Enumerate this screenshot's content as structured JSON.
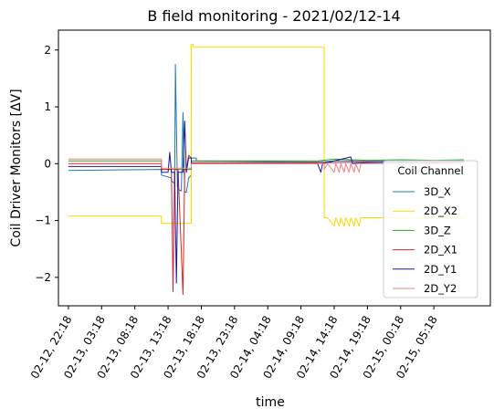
{
  "chart_data": {
    "type": "line",
    "title": "B field monitoring - 2021/02/12-14",
    "xlabel": "time",
    "ylabel": "Coil Driver Monitors [ΔV]",
    "ylim": [
      -2.5,
      2.35
    ],
    "xlim": [
      -0.3,
      12.7
    ],
    "yticks": [
      2,
      1,
      0,
      -1,
      -2
    ],
    "ytick_labels": [
      "2",
      "1",
      "0",
      "−1",
      "−2"
    ],
    "xtick_labels": [
      "02-12, 22:18",
      "02-13, 03:18",
      "02-13, 08:18",
      "02-13, 13:18",
      "02-13, 18:18",
      "02-13, 23:18",
      "02-14, 04:18",
      "02-14, 09:18",
      "02-14, 14:18",
      "02-14, 19:18",
      "02-15, 00:18",
      "02-15, 05:18"
    ],
    "grid": false,
    "legend": {
      "title": "Coil Channel",
      "placement": "lower-right"
    },
    "series": [
      {
        "name": "3D_X",
        "color": "#1f77b4",
        "x": [
          0,
          2.8,
          2.8,
          3.1,
          3.1,
          3.2,
          3.22,
          3.28,
          3.3,
          3.4,
          3.45,
          3.5,
          3.55,
          3.62,
          3.7,
          3.7,
          3.85,
          3.85,
          7.5,
          8,
          9,
          10,
          11,
          11.9
        ],
        "y": [
          -0.12,
          -0.1,
          -0.2,
          -0.25,
          -0.3,
          -0.35,
          1.75,
          -0.4,
          -0.45,
          -0.48,
          0.9,
          -0.5,
          -0.5,
          -0.25,
          -0.2,
          0.1,
          0.1,
          0.05,
          0.03,
          0.05,
          0.05,
          0.05,
          0.05,
          0.06
        ]
      },
      {
        "name": "2D_X2",
        "color": "#ffd700",
        "x": [
          0,
          2.8,
          2.8,
          3.7,
          3.7,
          3.75,
          3.75,
          7.7,
          7.7,
          7.8,
          8.0,
          8.05,
          8.15,
          8.2,
          8.3,
          8.35,
          8.45,
          8.5,
          8.6,
          8.65,
          8.75,
          8.8,
          9.0,
          10,
          11,
          11.9
        ],
        "y": [
          -0.92,
          -0.92,
          -1.05,
          -1.05,
          2.1,
          2.1,
          2.05,
          2.05,
          -0.95,
          -0.95,
          -1.1,
          -0.95,
          -1.1,
          -0.95,
          -1.1,
          -0.95,
          -1.1,
          -0.95,
          -1.1,
          -0.95,
          -1.1,
          -0.95,
          -0.95,
          -0.95,
          -0.96,
          -0.96
        ]
      },
      {
        "name": "3D_Z",
        "color": "#2ca02c",
        "x": [
          0,
          2.8,
          2.8,
          3.7,
          3.7,
          7.5,
          8,
          9,
          10,
          11,
          11.9
        ],
        "y": [
          0.05,
          0.05,
          -0.1,
          -0.1,
          0.05,
          0.05,
          0.08,
          0.06,
          0.07,
          0.06,
          0.07
        ]
      },
      {
        "name": "2D_X1",
        "color": "#d62728",
        "x": [
          0,
          2.8,
          2.8,
          3.1,
          3.15,
          3.2,
          3.25,
          3.3,
          3.45,
          3.5,
          3.55,
          3.62,
          3.7,
          3.7,
          7.5,
          8,
          9,
          10,
          11,
          11.9
        ],
        "y": [
          0,
          0,
          -0.1,
          -0.1,
          -2.25,
          -0.1,
          -0.1,
          -0.1,
          -2.3,
          -0.1,
          -0.1,
          0.15,
          0.1,
          0.02,
          0.02,
          0.02,
          0.03,
          0.02,
          0.03,
          0.04
        ]
      },
      {
        "name": "2D_Y1",
        "color": "#1a1a8c",
        "x": [
          0,
          2.8,
          2.8,
          3.0,
          3.05,
          3.1,
          3.2,
          3.25,
          3.3,
          3.45,
          3.5,
          3.55,
          3.62,
          3.7,
          3.7,
          7.5,
          7.6,
          7.65,
          8.5,
          8.55,
          9,
          10,
          11,
          11.9
        ],
        "y": [
          -0.05,
          -0.05,
          -0.15,
          -0.15,
          0.2,
          -0.15,
          -0.15,
          -2.1,
          -0.15,
          -0.15,
          0.75,
          -0.15,
          0.1,
          0.1,
          0.0,
          0.0,
          -0.15,
          0.0,
          0.12,
          0.0,
          0.02,
          0.03,
          0.02,
          0.03
        ]
      },
      {
        "name": "2D_Y2",
        "color": "#f08080",
        "x": [
          0,
          2.8,
          2.8,
          3.7,
          3.7,
          7.7,
          7.7,
          7.8,
          8.0,
          8.05,
          8.15,
          8.2,
          8.3,
          8.35,
          8.45,
          8.5,
          8.6,
          8.65,
          8.75,
          8.8,
          9.0,
          10,
          11,
          11.9
        ],
        "y": [
          0.08,
          0.08,
          -0.08,
          -0.08,
          0.0,
          0.0,
          -0.1,
          0.0,
          -0.15,
          0.0,
          -0.15,
          0.0,
          -0.15,
          0.0,
          -0.15,
          0.0,
          -0.15,
          0.0,
          -0.15,
          0.0,
          0.0,
          0.0,
          0.0,
          0.0
        ]
      }
    ]
  }
}
